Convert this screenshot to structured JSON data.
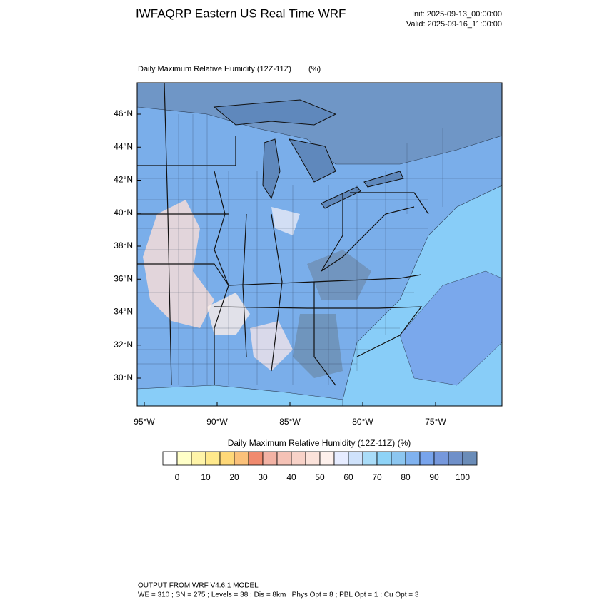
{
  "header": {
    "title": "IWFAQRP Eastern US Real Time WRF",
    "init": "Init: 2025-09-13_00:00:00",
    "valid": "Valid: 2025-09-16_11:00:00"
  },
  "map": {
    "title": "Daily Maximum Relative Humidity (12Z-11Z)",
    "units": "(%)",
    "lat_labels": [
      "46°N",
      "44°N",
      "42°N",
      "40°N",
      "38°N",
      "36°N",
      "34°N",
      "32°N",
      "30°N"
    ],
    "lon_labels": [
      "95°W",
      "90°W",
      "85°W",
      "80°W",
      "75°W"
    ]
  },
  "colorbar": {
    "title": "Daily Maximum Relative Humidity (12Z-11Z)  (%)",
    "colors": [
      "#ffffff",
      "#ffffc8",
      "#fff4a8",
      "#ffe98c",
      "#ffd878",
      "#fbc17a",
      "#f08a6e",
      "#f2b2a4",
      "#f5c2b6",
      "#f8d2c8",
      "#fbe2da",
      "#fdf0ec",
      "#e6ecff",
      "#cfe2fb",
      "#a9dcf8",
      "#8ed3f7",
      "#8cc6f0",
      "#80b2ef",
      "#78a4ec",
      "#7698dc",
      "#6f90c9",
      "#6a8cb8"
    ],
    "labels": [
      0,
      10,
      20,
      30,
      40,
      50,
      60,
      70,
      80,
      90,
      100
    ]
  },
  "footer": {
    "line1": "OUTPUT FROM WRF V4.6.1 MODEL",
    "line2": "WE = 310 ; SN = 275 ; Levels = 38 ; Dis = 8km ; Phys Opt = 8 ; PBL Opt = 1 ; Cu Opt = 3"
  }
}
